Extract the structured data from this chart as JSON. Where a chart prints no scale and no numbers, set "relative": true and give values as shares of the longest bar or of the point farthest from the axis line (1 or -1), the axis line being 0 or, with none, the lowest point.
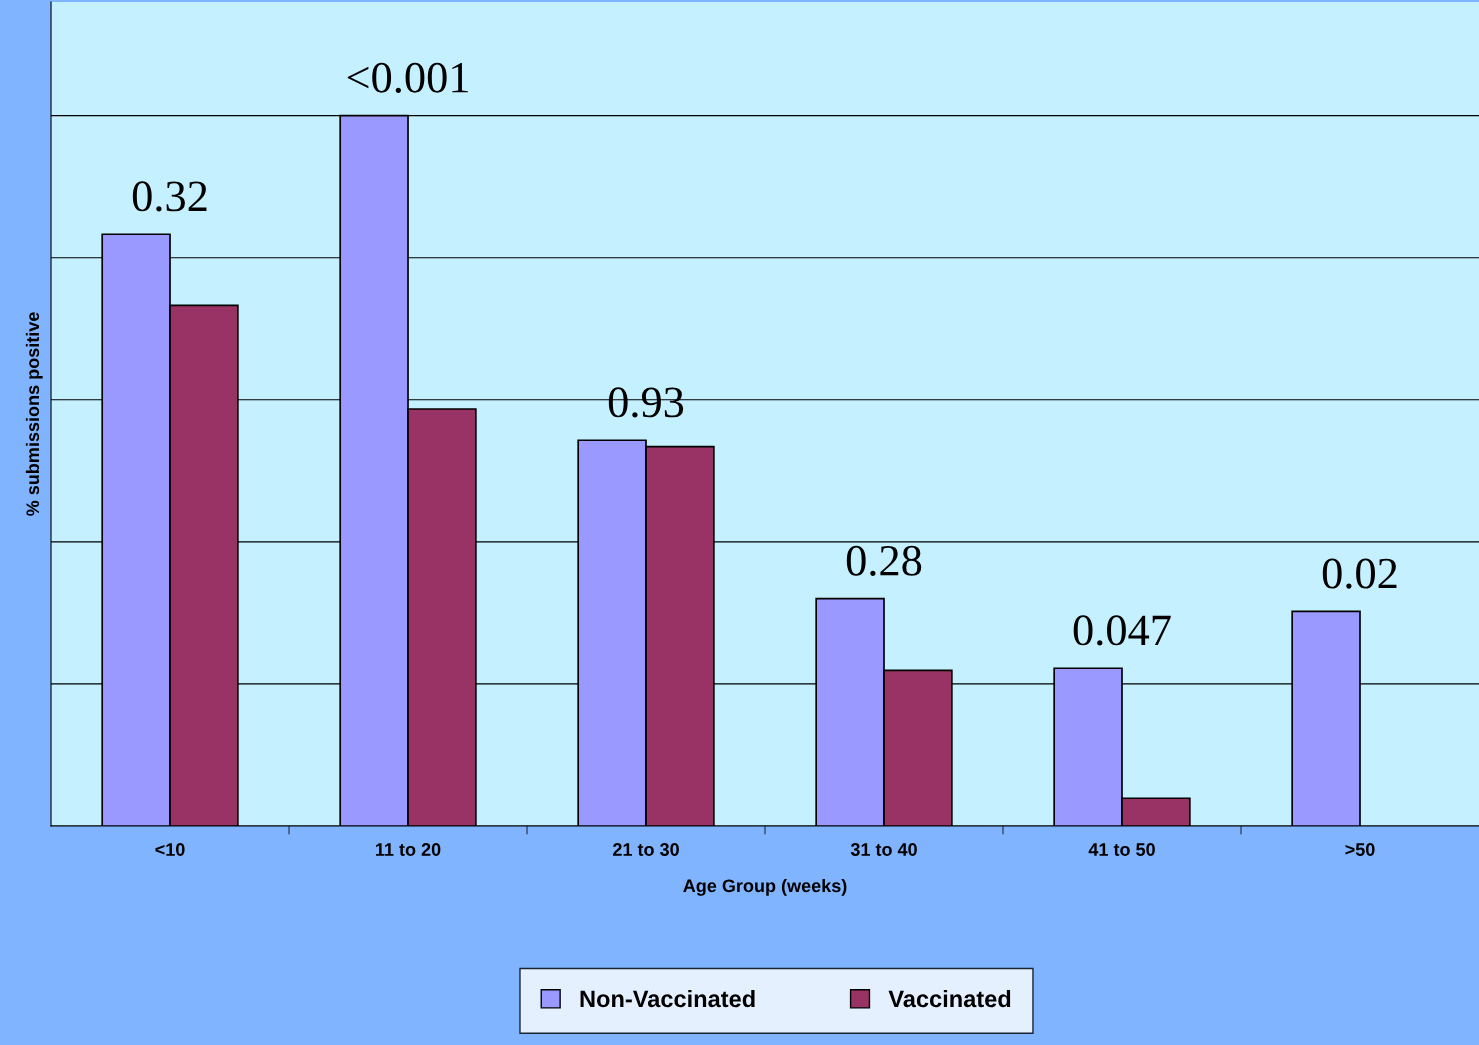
{
  "chart_data": {
    "type": "bar",
    "relative": true,
    "categories": [
      "<10",
      "11 to 20",
      "21 to 30",
      "31 to 40",
      "41 to 50",
      ">50"
    ],
    "series": [
      {
        "name": "Non-Vaccinated",
        "color": "#9999ff",
        "values": [
          0.833,
          1.0,
          0.543,
          0.32,
          0.222,
          0.302
        ]
      },
      {
        "name": "Vaccinated",
        "color": "#993366",
        "values": [
          0.733,
          0.587,
          0.534,
          0.219,
          0.039,
          null
        ]
      }
    ],
    "xlabel": "Age Group (weeks)",
    "ylabel": "% submissions positive",
    "annotations": [
      "0.32",
      "<0.001",
      "0.93",
      "0.28",
      "0.047",
      "0.02"
    ],
    "grid": "y",
    "legend": "bottom"
  }
}
